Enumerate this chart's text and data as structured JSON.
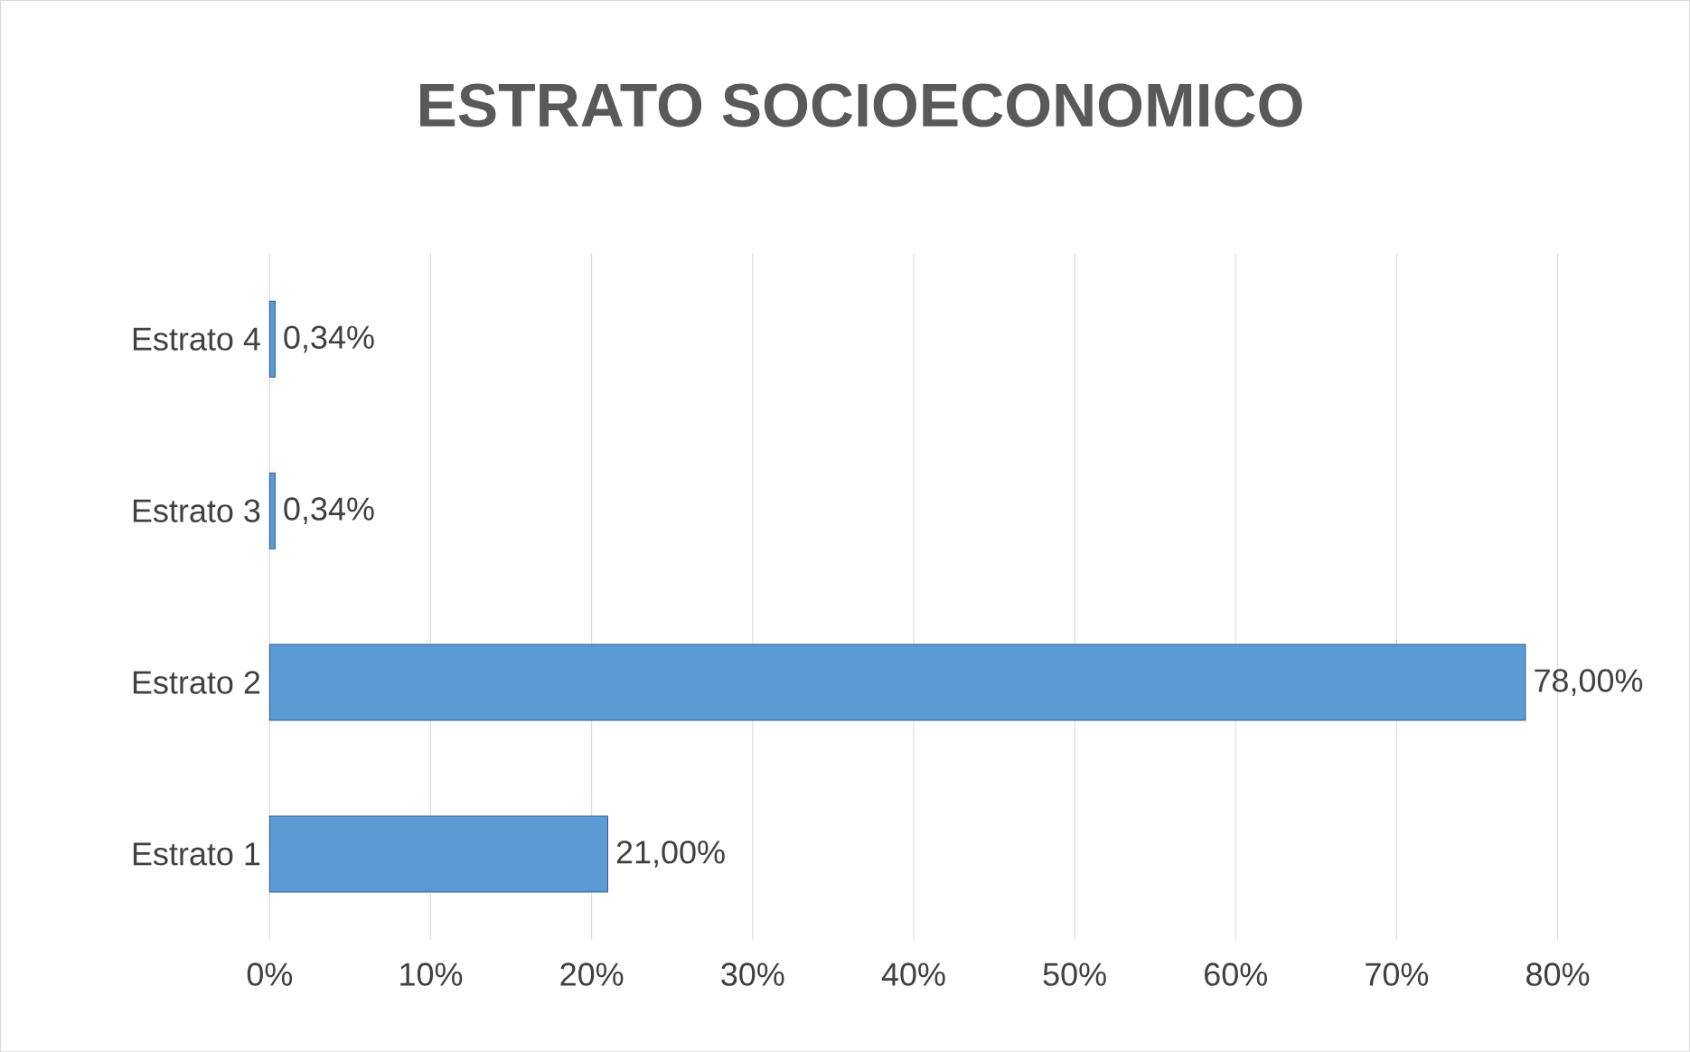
{
  "chart_data": {
    "type": "bar",
    "orientation": "horizontal",
    "title": "ESTRATO SOCIOECONOMICO",
    "categories": [
      "Estrato 4",
      "Estrato 3",
      "Estrato 2",
      "Estrato 1"
    ],
    "values": [
      0.34,
      0.34,
      78,
      21
    ],
    "value_labels": [
      "0,34%",
      "0,34%",
      "78,00%",
      "21,00%"
    ],
    "color": "#5b9bd5",
    "xlim": [
      0,
      80
    ],
    "xticks": [
      {
        "value": 0,
        "label": "0%"
      },
      {
        "value": 10,
        "label": "10%"
      },
      {
        "value": 20,
        "label": "20%"
      },
      {
        "value": 30,
        "label": "30%"
      },
      {
        "value": 40,
        "label": "40%"
      },
      {
        "value": 50,
        "label": "50%"
      },
      {
        "value": 60,
        "label": "60%"
      },
      {
        "value": 70,
        "label": "70%"
      },
      {
        "value": 80,
        "label": "80%"
      }
    ],
    "grid": "x"
  }
}
